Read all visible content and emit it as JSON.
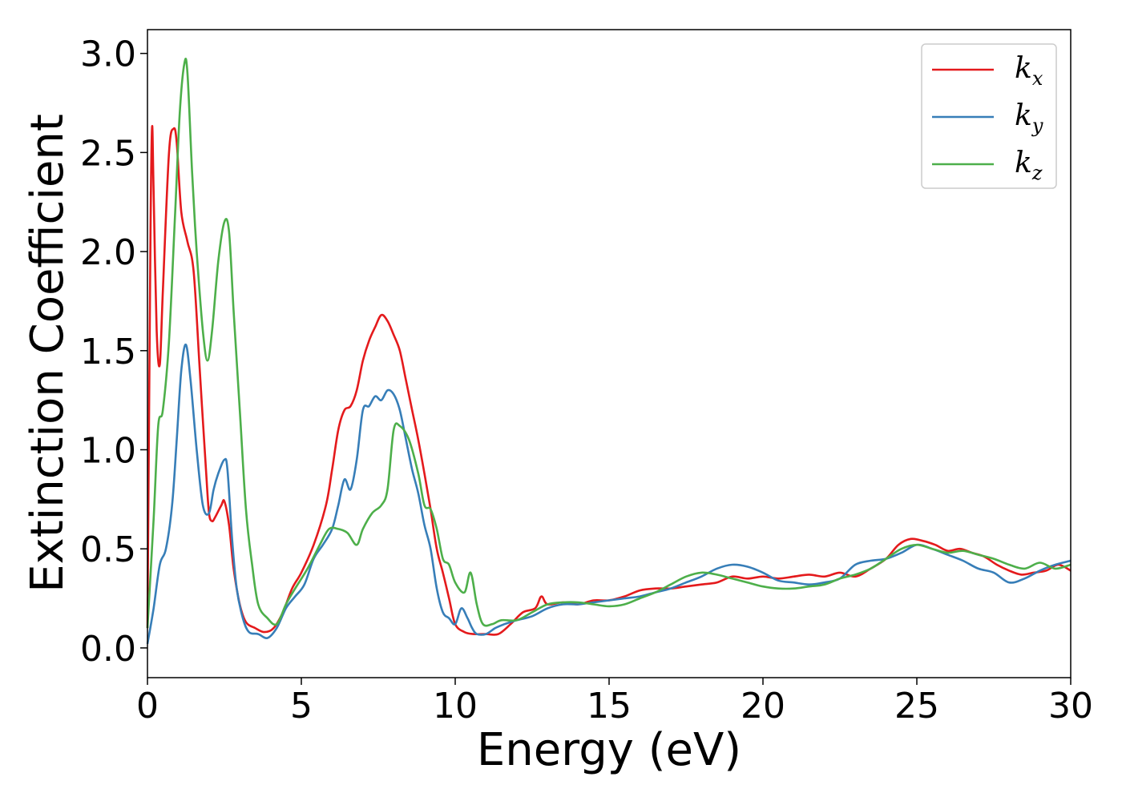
{
  "chart_data": {
    "type": "line",
    "xlabel": "Energy (eV)",
    "ylabel": "Extinction Coefficient",
    "xlim": [
      0,
      30
    ],
    "ylim": [
      -0.15,
      3.12
    ],
    "xticks": [
      0,
      5,
      10,
      15,
      20,
      25,
      30
    ],
    "xtick_labels": [
      "0",
      "5",
      "10",
      "15",
      "20",
      "25",
      "30"
    ],
    "yticks": [
      0.0,
      0.5,
      1.0,
      1.5,
      2.0,
      2.5,
      3.0
    ],
    "ytick_labels": [
      "0.0",
      "0.5",
      "1.0",
      "1.5",
      "2.0",
      "2.5",
      "3.0"
    ],
    "grid": false,
    "legend_position": "top-right",
    "series": [
      {
        "name": "k",
        "subscript": "x",
        "color": "#e41a1c",
        "x": [
          0,
          0.1,
          0.15,
          0.2,
          0.3,
          0.4,
          0.5,
          0.7,
          0.85,
          0.95,
          1.1,
          1.3,
          1.5,
          1.7,
          1.9,
          2.0,
          2.1,
          2.2,
          2.4,
          2.5,
          2.65,
          2.8,
          3.0,
          3.2,
          3.5,
          3.8,
          4.1,
          4.4,
          4.7,
          5.0,
          5.4,
          5.8,
          6.0,
          6.2,
          6.4,
          6.6,
          6.8,
          7.0,
          7.2,
          7.4,
          7.6,
          7.8,
          8.0,
          8.2,
          8.4,
          8.6,
          8.8,
          9.0,
          9.2,
          9.4,
          9.6,
          9.8,
          10.0,
          10.3,
          10.6,
          11.0,
          11.4,
          11.8,
          12.2,
          12.6,
          12.8,
          13.0,
          13.5,
          14.0,
          14.5,
          15.0,
          15.5,
          16.0,
          16.5,
          17.0,
          17.5,
          18.0,
          18.5,
          19.0,
          19.5,
          20.0,
          20.5,
          21.0,
          21.5,
          22.0,
          22.5,
          23.0,
          23.5,
          24.0,
          24.4,
          24.8,
          25.2,
          25.6,
          26.0,
          26.4,
          26.8,
          27.2,
          27.6,
          28.0,
          28.4,
          28.8,
          29.2,
          29.6,
          30.0
        ],
        "values": [
          0.1,
          2.1,
          2.63,
          2.3,
          1.6,
          1.43,
          1.8,
          2.5,
          2.62,
          2.55,
          2.2,
          2.05,
          1.9,
          1.4,
          0.9,
          0.68,
          0.64,
          0.66,
          0.72,
          0.74,
          0.62,
          0.4,
          0.22,
          0.13,
          0.1,
          0.08,
          0.1,
          0.18,
          0.3,
          0.38,
          0.52,
          0.72,
          0.9,
          1.1,
          1.2,
          1.22,
          1.3,
          1.45,
          1.55,
          1.62,
          1.68,
          1.65,
          1.58,
          1.5,
          1.35,
          1.2,
          1.05,
          0.88,
          0.7,
          0.5,
          0.38,
          0.25,
          0.12,
          0.08,
          0.07,
          0.07,
          0.07,
          0.12,
          0.18,
          0.2,
          0.26,
          0.22,
          0.23,
          0.22,
          0.24,
          0.24,
          0.26,
          0.29,
          0.3,
          0.3,
          0.31,
          0.32,
          0.33,
          0.36,
          0.35,
          0.36,
          0.35,
          0.36,
          0.37,
          0.36,
          0.38,
          0.36,
          0.4,
          0.45,
          0.52,
          0.55,
          0.54,
          0.52,
          0.49,
          0.5,
          0.48,
          0.46,
          0.42,
          0.39,
          0.37,
          0.38,
          0.39,
          0.42,
          0.39
        ]
      },
      {
        "name": "k",
        "subscript": "y",
        "color": "#377eb8",
        "x": [
          0,
          0.2,
          0.4,
          0.6,
          0.8,
          0.95,
          1.1,
          1.25,
          1.4,
          1.6,
          1.8,
          2.0,
          2.15,
          2.3,
          2.5,
          2.6,
          2.75,
          2.9,
          3.1,
          3.3,
          3.6,
          3.9,
          4.2,
          4.5,
          4.8,
          5.1,
          5.4,
          5.7,
          6.0,
          6.2,
          6.4,
          6.6,
          6.8,
          7.0,
          7.2,
          7.4,
          7.6,
          7.8,
          8.0,
          8.2,
          8.4,
          8.6,
          8.8,
          9.0,
          9.2,
          9.4,
          9.6,
          9.8,
          10.0,
          10.2,
          10.4,
          10.55,
          10.7,
          11.0,
          11.3,
          11.6,
          12.0,
          12.5,
          13.0,
          13.5,
          14.0,
          14.5,
          15.0,
          15.5,
          16.0,
          16.5,
          17.0,
          17.5,
          18.0,
          18.5,
          19.0,
          19.5,
          20.0,
          20.5,
          21.0,
          21.5,
          22.0,
          22.5,
          23.0,
          23.5,
          24.0,
          24.5,
          25.0,
          25.5,
          26.0,
          26.5,
          27.0,
          27.5,
          28.0,
          28.5,
          29.0,
          29.5,
          30.0
        ],
        "values": [
          0.02,
          0.2,
          0.42,
          0.5,
          0.72,
          1.05,
          1.4,
          1.53,
          1.35,
          1.0,
          0.72,
          0.68,
          0.8,
          0.88,
          0.95,
          0.9,
          0.55,
          0.3,
          0.15,
          0.08,
          0.07,
          0.05,
          0.1,
          0.2,
          0.26,
          0.32,
          0.45,
          0.52,
          0.6,
          0.72,
          0.85,
          0.8,
          0.95,
          1.2,
          1.22,
          1.27,
          1.25,
          1.3,
          1.28,
          1.2,
          1.05,
          0.9,
          0.78,
          0.62,
          0.5,
          0.3,
          0.18,
          0.15,
          0.12,
          0.2,
          0.15,
          0.1,
          0.07,
          0.07,
          0.1,
          0.12,
          0.14,
          0.16,
          0.2,
          0.22,
          0.22,
          0.23,
          0.24,
          0.25,
          0.26,
          0.28,
          0.3,
          0.33,
          0.36,
          0.4,
          0.42,
          0.41,
          0.38,
          0.34,
          0.33,
          0.32,
          0.33,
          0.35,
          0.42,
          0.44,
          0.45,
          0.48,
          0.52,
          0.5,
          0.47,
          0.44,
          0.4,
          0.38,
          0.33,
          0.35,
          0.39,
          0.42,
          0.44
        ]
      },
      {
        "name": "k",
        "subscript": "z",
        "color": "#4daf4a",
        "x": [
          0,
          0.2,
          0.35,
          0.5,
          0.7,
          0.9,
          1.05,
          1.2,
          1.3,
          1.45,
          1.6,
          1.8,
          1.95,
          2.1,
          2.3,
          2.5,
          2.65,
          2.8,
          3.0,
          3.2,
          3.4,
          3.6,
          3.9,
          4.2,
          4.5,
          4.8,
          5.2,
          5.6,
          5.9,
          6.2,
          6.5,
          6.8,
          7.0,
          7.3,
          7.6,
          7.8,
          8.0,
          8.2,
          8.5,
          8.8,
          9.0,
          9.2,
          9.4,
          9.6,
          9.8,
          10.0,
          10.3,
          10.5,
          10.7,
          10.9,
          11.2,
          11.5,
          12.0,
          12.5,
          13.0,
          13.5,
          14.0,
          14.5,
          15.0,
          15.5,
          16.0,
          16.5,
          17.0,
          17.5,
          18.0,
          18.5,
          19.0,
          19.5,
          20.0,
          20.5,
          21.0,
          21.5,
          22.0,
          22.5,
          23.0,
          23.5,
          24.0,
          24.5,
          25.0,
          25.5,
          26.0,
          26.5,
          27.0,
          27.5,
          28.0,
          28.5,
          29.0,
          29.5,
          30.0
        ],
        "values": [
          0.1,
          0.65,
          1.12,
          1.2,
          1.55,
          2.2,
          2.7,
          2.95,
          2.9,
          2.4,
          2.0,
          1.6,
          1.45,
          1.6,
          1.95,
          2.15,
          2.1,
          1.7,
          1.2,
          0.7,
          0.42,
          0.22,
          0.15,
          0.12,
          0.22,
          0.3,
          0.4,
          0.52,
          0.6,
          0.6,
          0.58,
          0.52,
          0.6,
          0.68,
          0.72,
          0.8,
          1.1,
          1.12,
          1.05,
          0.88,
          0.72,
          0.7,
          0.6,
          0.45,
          0.42,
          0.33,
          0.28,
          0.38,
          0.22,
          0.12,
          0.12,
          0.14,
          0.14,
          0.18,
          0.22,
          0.23,
          0.23,
          0.22,
          0.21,
          0.22,
          0.25,
          0.28,
          0.32,
          0.36,
          0.38,
          0.37,
          0.35,
          0.33,
          0.31,
          0.3,
          0.3,
          0.31,
          0.32,
          0.35,
          0.37,
          0.4,
          0.45,
          0.5,
          0.52,
          0.5,
          0.48,
          0.49,
          0.47,
          0.45,
          0.42,
          0.4,
          0.43,
          0.4,
          0.42
        ]
      }
    ]
  }
}
